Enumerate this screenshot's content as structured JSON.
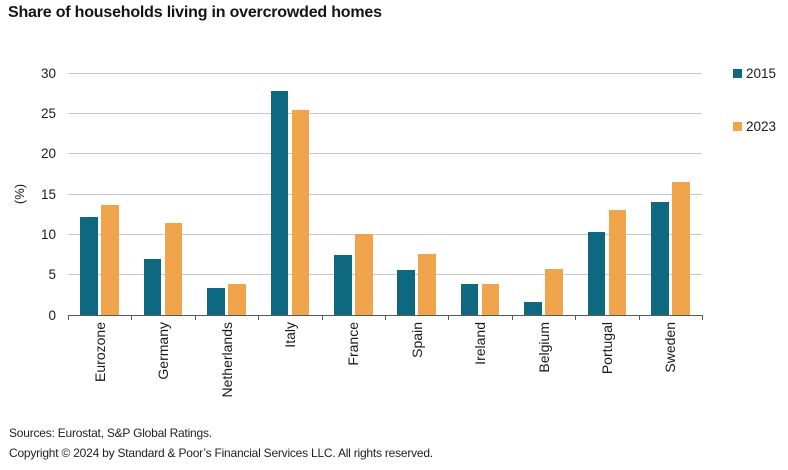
{
  "title": "Share of households living in overcrowded homes",
  "chart_data": {
    "type": "bar",
    "title": "Share of households living in overcrowded homes",
    "xlabel": "",
    "ylabel": "(%)",
    "categories": [
      "Eurozone",
      "Germany",
      "Netherlands",
      "Italy",
      "France",
      "Spain",
      "Ireland",
      "Belgium",
      "Portugal",
      "Sweden"
    ],
    "series": [
      {
        "name": "2015",
        "color": "#0e6980",
        "values": [
          12.1,
          7.0,
          3.3,
          27.8,
          7.4,
          5.6,
          3.9,
          1.6,
          10.3,
          14.0
        ]
      },
      {
        "name": "2023",
        "color": "#f0a44c",
        "values": [
          13.6,
          11.4,
          3.8,
          25.4,
          10.0,
          7.6,
          3.9,
          5.7,
          13.0,
          16.5
        ]
      }
    ],
    "ylim": [
      0,
      30
    ],
    "yticks": [
      0,
      5,
      10,
      15,
      20,
      25,
      30
    ],
    "grid": "horizontal",
    "gridline_color": "#c8c8c8",
    "axis_color": "#595959",
    "legend_position": "right"
  },
  "footer": {
    "sources": "Sources: Eurostat, S&P Global Ratings.",
    "copyright": "Copyright © 2024 by Standard & Poor’s Financial Services LLC. All rights reserved."
  }
}
